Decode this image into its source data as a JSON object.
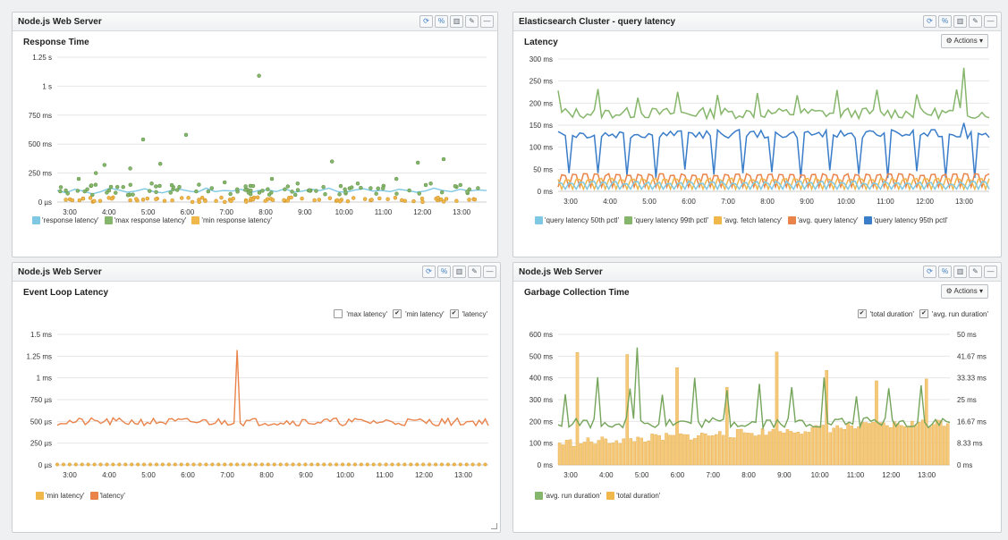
{
  "colors": {
    "light_blue": "#7ec8e3",
    "green": "#86b66b",
    "yellow": "#f0b74a",
    "orange": "#e9834a",
    "blue": "#3a7dc9"
  },
  "panel_tools": [
    "refresh-icon",
    "link-icon",
    "trash-icon",
    "edit-icon",
    "minimize-icon"
  ],
  "panels": [
    {
      "header": "Node.js Web Server",
      "subtitle": "Response Time",
      "legend": [
        "'response latency'",
        "'max response latency'",
        "'min response latency'"
      ],
      "chart_data": {
        "type": "scatter",
        "title": "Response Time",
        "x_ticks": [
          "3:00",
          "4:00",
          "5:00",
          "6:00",
          "7:00",
          "8:00",
          "9:00",
          "10:00",
          "11:00",
          "12:00",
          "13:00"
        ],
        "y_ticks": [
          "0 µs",
          "250 ms",
          "500 ms",
          "750 ms",
          "1 s",
          "1.25 s"
        ],
        "ylim": [
          0,
          1250
        ],
        "series": [
          {
            "name": "'response latency'",
            "color": "light_blue",
            "type": "line",
            "values": [
              100,
              80,
              110,
              95,
              70,
              90,
              120,
              105,
              85,
              95,
              115,
              90,
              80,
              100,
              110,
              95,
              85,
              120,
              90,
              100,
              95,
              110,
              80,
              100,
              105,
              90,
              115,
              85,
              95,
              110,
              100,
              120,
              90,
              85,
              105,
              115,
              95,
              100,
              90,
              110,
              100,
              85,
              95,
              120,
              100,
              90,
              110,
              95,
              105,
              100
            ]
          },
          {
            "name": "'max response latency'",
            "color": "green",
            "type": "scatter",
            "points": [
              [
                0.02,
                100
              ],
              [
                0.05,
                200
              ],
              [
                0.07,
                110
              ],
              [
                0.09,
                250
              ],
              [
                0.11,
                320
              ],
              [
                0.14,
                130
              ],
              [
                0.17,
                290
              ],
              [
                0.2,
                540
              ],
              [
                0.22,
                160
              ],
              [
                0.24,
                330
              ],
              [
                0.27,
                110
              ],
              [
                0.3,
                580
              ],
              [
                0.33,
                150
              ],
              [
                0.36,
                120
              ],
              [
                0.39,
                170
              ],
              [
                0.42,
                90
              ],
              [
                0.45,
                140
              ],
              [
                0.47,
                1090
              ],
              [
                0.5,
                200
              ],
              [
                0.53,
                110
              ],
              [
                0.56,
                160
              ],
              [
                0.59,
                100
              ],
              [
                0.62,
                130
              ],
              [
                0.64,
                350
              ],
              [
                0.67,
                110
              ],
              [
                0.7,
                160
              ],
              [
                0.73,
                120
              ],
              [
                0.76,
                140
              ],
              [
                0.79,
                200
              ],
              [
                0.82,
                100
              ],
              [
                0.84,
                340
              ],
              [
                0.87,
                160
              ],
              [
                0.9,
                370
              ],
              [
                0.93,
                130
              ],
              [
                0.96,
                110
              ],
              [
                0.98,
                120
              ]
            ]
          },
          {
            "name": "'min response latency'",
            "color": "yellow",
            "type": "scatter",
            "points": [
              [
                0.02,
                20
              ],
              [
                0.06,
                30
              ],
              [
                0.1,
                10
              ],
              [
                0.13,
                40
              ],
              [
                0.17,
                15
              ],
              [
                0.21,
                30
              ],
              [
                0.25,
                10
              ],
              [
                0.29,
                35
              ],
              [
                0.33,
                20
              ],
              [
                0.37,
                10
              ],
              [
                0.41,
                30
              ],
              [
                0.45,
                15
              ],
              [
                0.49,
                25
              ],
              [
                0.53,
                10
              ],
              [
                0.57,
                30
              ],
              [
                0.61,
                20
              ],
              [
                0.65,
                10
              ],
              [
                0.69,
                35
              ],
              [
                0.73,
                15
              ],
              [
                0.77,
                25
              ],
              [
                0.81,
                10
              ],
              [
                0.85,
                30
              ],
              [
                0.89,
                20
              ],
              [
                0.93,
                10
              ],
              [
                0.97,
                25
              ]
            ]
          }
        ]
      }
    },
    {
      "header": "Elasticsearch Cluster - query latency",
      "subtitle": "Latency",
      "actions_label": "Actions",
      "legend": [
        "'query latency 50th pctl'",
        "'query latency 99th pctl'",
        "'avg. fetch latency'",
        "'avg. query latency'",
        "'query latency 95th pctl'"
      ],
      "chart_data": {
        "type": "line",
        "title": "Latency",
        "x_ticks": [
          "3:00",
          "4:00",
          "5:00",
          "6:00",
          "7:00",
          "8:00",
          "9:00",
          "10:00",
          "11:00",
          "12:00",
          "13:00"
        ],
        "y_ticks": [
          "0 ms",
          "50 ms",
          "100 ms",
          "150 ms",
          "200 ms",
          "250 ms",
          "300 ms"
        ],
        "ylim": [
          0,
          300
        ],
        "series": [
          {
            "name": "'query latency 99th pctl'",
            "color": "green",
            "pattern": "p99"
          },
          {
            "name": "'query latency 95th pctl'",
            "color": "blue",
            "pattern": "p95"
          },
          {
            "name": "'avg. query latency'",
            "color": "orange",
            "pattern": "avgq"
          },
          {
            "name": "'avg. fetch latency'",
            "color": "yellow",
            "pattern": "fetch"
          },
          {
            "name": "'query latency 50th pctl'",
            "color": "light_blue",
            "pattern": "p50"
          }
        ]
      }
    },
    {
      "header": "Node.js Web Server",
      "subtitle": "Event Loop Latency",
      "checks": [
        {
          "label": "'max latency'",
          "checked": false
        },
        {
          "label": "'min latency'",
          "checked": true
        },
        {
          "label": "'latency'",
          "checked": true
        }
      ],
      "legend": [
        "'min latency'",
        "'latency'"
      ],
      "chart_data": {
        "type": "line",
        "title": "Event Loop Latency",
        "x_ticks": [
          "3:00",
          "4:00",
          "5:00",
          "6:00",
          "7:00",
          "8:00",
          "9:00",
          "10:00",
          "11:00",
          "12:00",
          "13:00"
        ],
        "y_ticks": [
          "0 µs",
          "250 µs",
          "500 µs",
          "750 µs",
          "1 ms",
          "1.25 ms",
          "1.5 ms"
        ],
        "ylim": [
          0,
          1500
        ],
        "series": [
          {
            "name": "'latency'",
            "color": "orange",
            "pattern": "loop"
          },
          {
            "name": "'min latency'",
            "color": "yellow",
            "pattern": "zero"
          }
        ]
      }
    },
    {
      "header": "Node.js Web Server",
      "subtitle": "Garbage Collection Time",
      "actions_label": "Actions",
      "checks": [
        {
          "label": "'total duration'",
          "checked": true
        },
        {
          "label": "'avg. run duration'",
          "checked": true
        }
      ],
      "legend": [
        "'avg. run duration'",
        "'total duration'"
      ],
      "chart_data": {
        "type": "bar",
        "title": "Garbage Collection Time",
        "x_ticks": [
          "3:00",
          "4:00",
          "5:00",
          "6:00",
          "7:00",
          "8:00",
          "9:00",
          "10:00",
          "11:00",
          "12:00",
          "13:00"
        ],
        "y_ticks": [
          "0 ms",
          "100 ms",
          "200 ms",
          "300 ms",
          "400 ms",
          "500 ms",
          "600 ms"
        ],
        "y2_ticks": [
          "0 ms",
          "8.33 ms",
          "16.67 ms",
          "25 ms",
          "33.33 ms",
          "41.67 ms",
          "50 ms"
        ],
        "ylim": [
          0,
          600
        ],
        "series": [
          {
            "name": "'total duration'",
            "color": "yellow",
            "type": "bar"
          },
          {
            "name": "'avg. run duration'",
            "color": "green",
            "type": "line"
          }
        ]
      }
    }
  ]
}
